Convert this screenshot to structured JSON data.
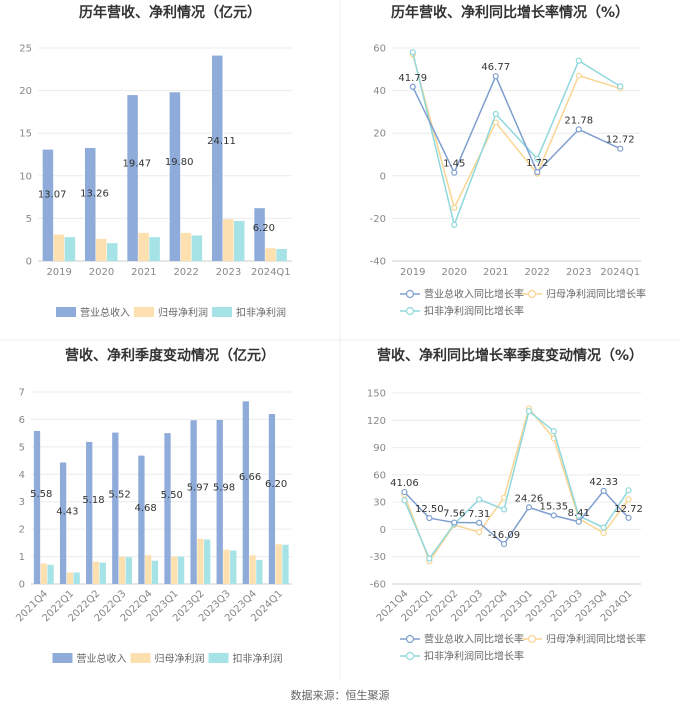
{
  "source": "数据来源：恒生聚源",
  "colors": {
    "revenue": "#8eabd9",
    "netprofit": "#fde0b0",
    "deducted": "#a6e3e6",
    "revLine": "#7f9fcf",
    "npLine": "#f9d593",
    "dedLine": "#8fd8dc"
  },
  "chart_data": [
    {
      "type": "bar",
      "title": "历年营收、净利情况（亿元）",
      "categories": [
        "2019",
        "2020",
        "2021",
        "2022",
        "2023",
        "2024Q1"
      ],
      "ylim": [
        0,
        25
      ],
      "yticks": [
        "0",
        "5",
        "10",
        "15",
        "20",
        "25"
      ],
      "series": [
        {
          "name": "营业总收入",
          "values": [
            13.07,
            13.26,
            19.47,
            19.8,
            24.11,
            6.2
          ],
          "labels": [
            "13.07",
            "13.26",
            "19.47",
            "19.80",
            "24.11",
            "6.20"
          ]
        },
        {
          "name": "归母净利润",
          "values": [
            3.1,
            2.6,
            3.3,
            3.3,
            4.9,
            1.5
          ]
        },
        {
          "name": "扣非净利润",
          "values": [
            2.8,
            2.1,
            2.8,
            3.0,
            4.7,
            1.4
          ]
        }
      ],
      "legend": "bottom"
    },
    {
      "type": "line",
      "title": "历年营收、净利同比增长率情况（%）",
      "categories": [
        "2019",
        "2020",
        "2021",
        "2022",
        "2023",
        "2024Q1"
      ],
      "ylim": [
        -40,
        60
      ],
      "yticks": [
        "-40",
        "-20",
        "0",
        "20",
        "40",
        "60"
      ],
      "series": [
        {
          "name": "营业总收入同比增长率",
          "values": [
            41.79,
            1.45,
            46.77,
            1.72,
            21.78,
            12.72
          ],
          "labels": [
            "41.79",
            "1.45",
            "46.77",
            "1.72",
            "21.78",
            "12.72"
          ]
        },
        {
          "name": "归母净利润同比增长率",
          "values": [
            57,
            -15,
            25,
            1,
            47,
            41
          ]
        },
        {
          "name": "扣非净利润同比增长率",
          "values": [
            58,
            -23,
            29,
            8,
            54,
            42
          ]
        }
      ],
      "legend": "bottom"
    },
    {
      "type": "bar",
      "title": "营收、净利季度变动情况（亿元）",
      "categories": [
        "2021Q4",
        "2022Q1",
        "2022Q2",
        "2022Q3",
        "2022Q4",
        "2023Q1",
        "2023Q2",
        "2023Q3",
        "2023Q4",
        "2024Q1"
      ],
      "ylim": [
        0,
        7
      ],
      "yticks": [
        "0",
        "1",
        "2",
        "3",
        "4",
        "5",
        "6",
        "7"
      ],
      "series": [
        {
          "name": "营业总收入",
          "values": [
            5.58,
            4.43,
            5.18,
            5.52,
            4.68,
            5.5,
            5.97,
            5.98,
            6.66,
            6.2
          ],
          "labels": [
            "5.58",
            "4.43",
            "5.18",
            "5.52",
            "4.68",
            "5.50",
            "5.97",
            "5.98",
            "6.66",
            "6.20"
          ]
        },
        {
          "name": "归母净利润",
          "values": [
            0.75,
            0.42,
            0.82,
            1.0,
            1.05,
            1.0,
            1.65,
            1.25,
            1.05,
            1.45
          ]
        },
        {
          "name": "扣非净利润",
          "values": [
            0.7,
            0.42,
            0.78,
            0.98,
            0.85,
            1.0,
            1.62,
            1.22,
            0.88,
            1.43
          ]
        }
      ],
      "legend": "bottom"
    },
    {
      "type": "line",
      "title": "营收、净利同比增长率季度变动情况（%）",
      "categories": [
        "2021Q4",
        "2022Q1",
        "2022Q2",
        "2022Q3",
        "2022Q4",
        "2023Q1",
        "2023Q2",
        "2023Q3",
        "2023Q4",
        "2024Q1"
      ],
      "ylim": [
        -60,
        150
      ],
      "yticks": [
        "-60",
        "-30",
        "0",
        "30",
        "60",
        "90",
        "120",
        "150"
      ],
      "series": [
        {
          "name": "营业总收入同比增长率",
          "values": [
            41.06,
            12.5,
            7.56,
            7.31,
            -16.09,
            24.26,
            15.35,
            8.41,
            42.33,
            12.72
          ],
          "labels": [
            "41.06",
            "12.50",
            "7.56",
            "7.31",
            "-16.09",
            "24.26",
            "15.35",
            "8.41",
            "42.33",
            "12.72"
          ]
        },
        {
          "name": "归母净利润同比增长率",
          "values": [
            38,
            -35,
            5,
            -3,
            35,
            133,
            100,
            12,
            -4,
            33
          ]
        },
        {
          "name": "扣非净利润同比增长率",
          "values": [
            32,
            -32,
            6,
            33,
            22,
            130,
            108,
            15,
            2,
            43
          ]
        }
      ],
      "legend": "bottom"
    }
  ]
}
